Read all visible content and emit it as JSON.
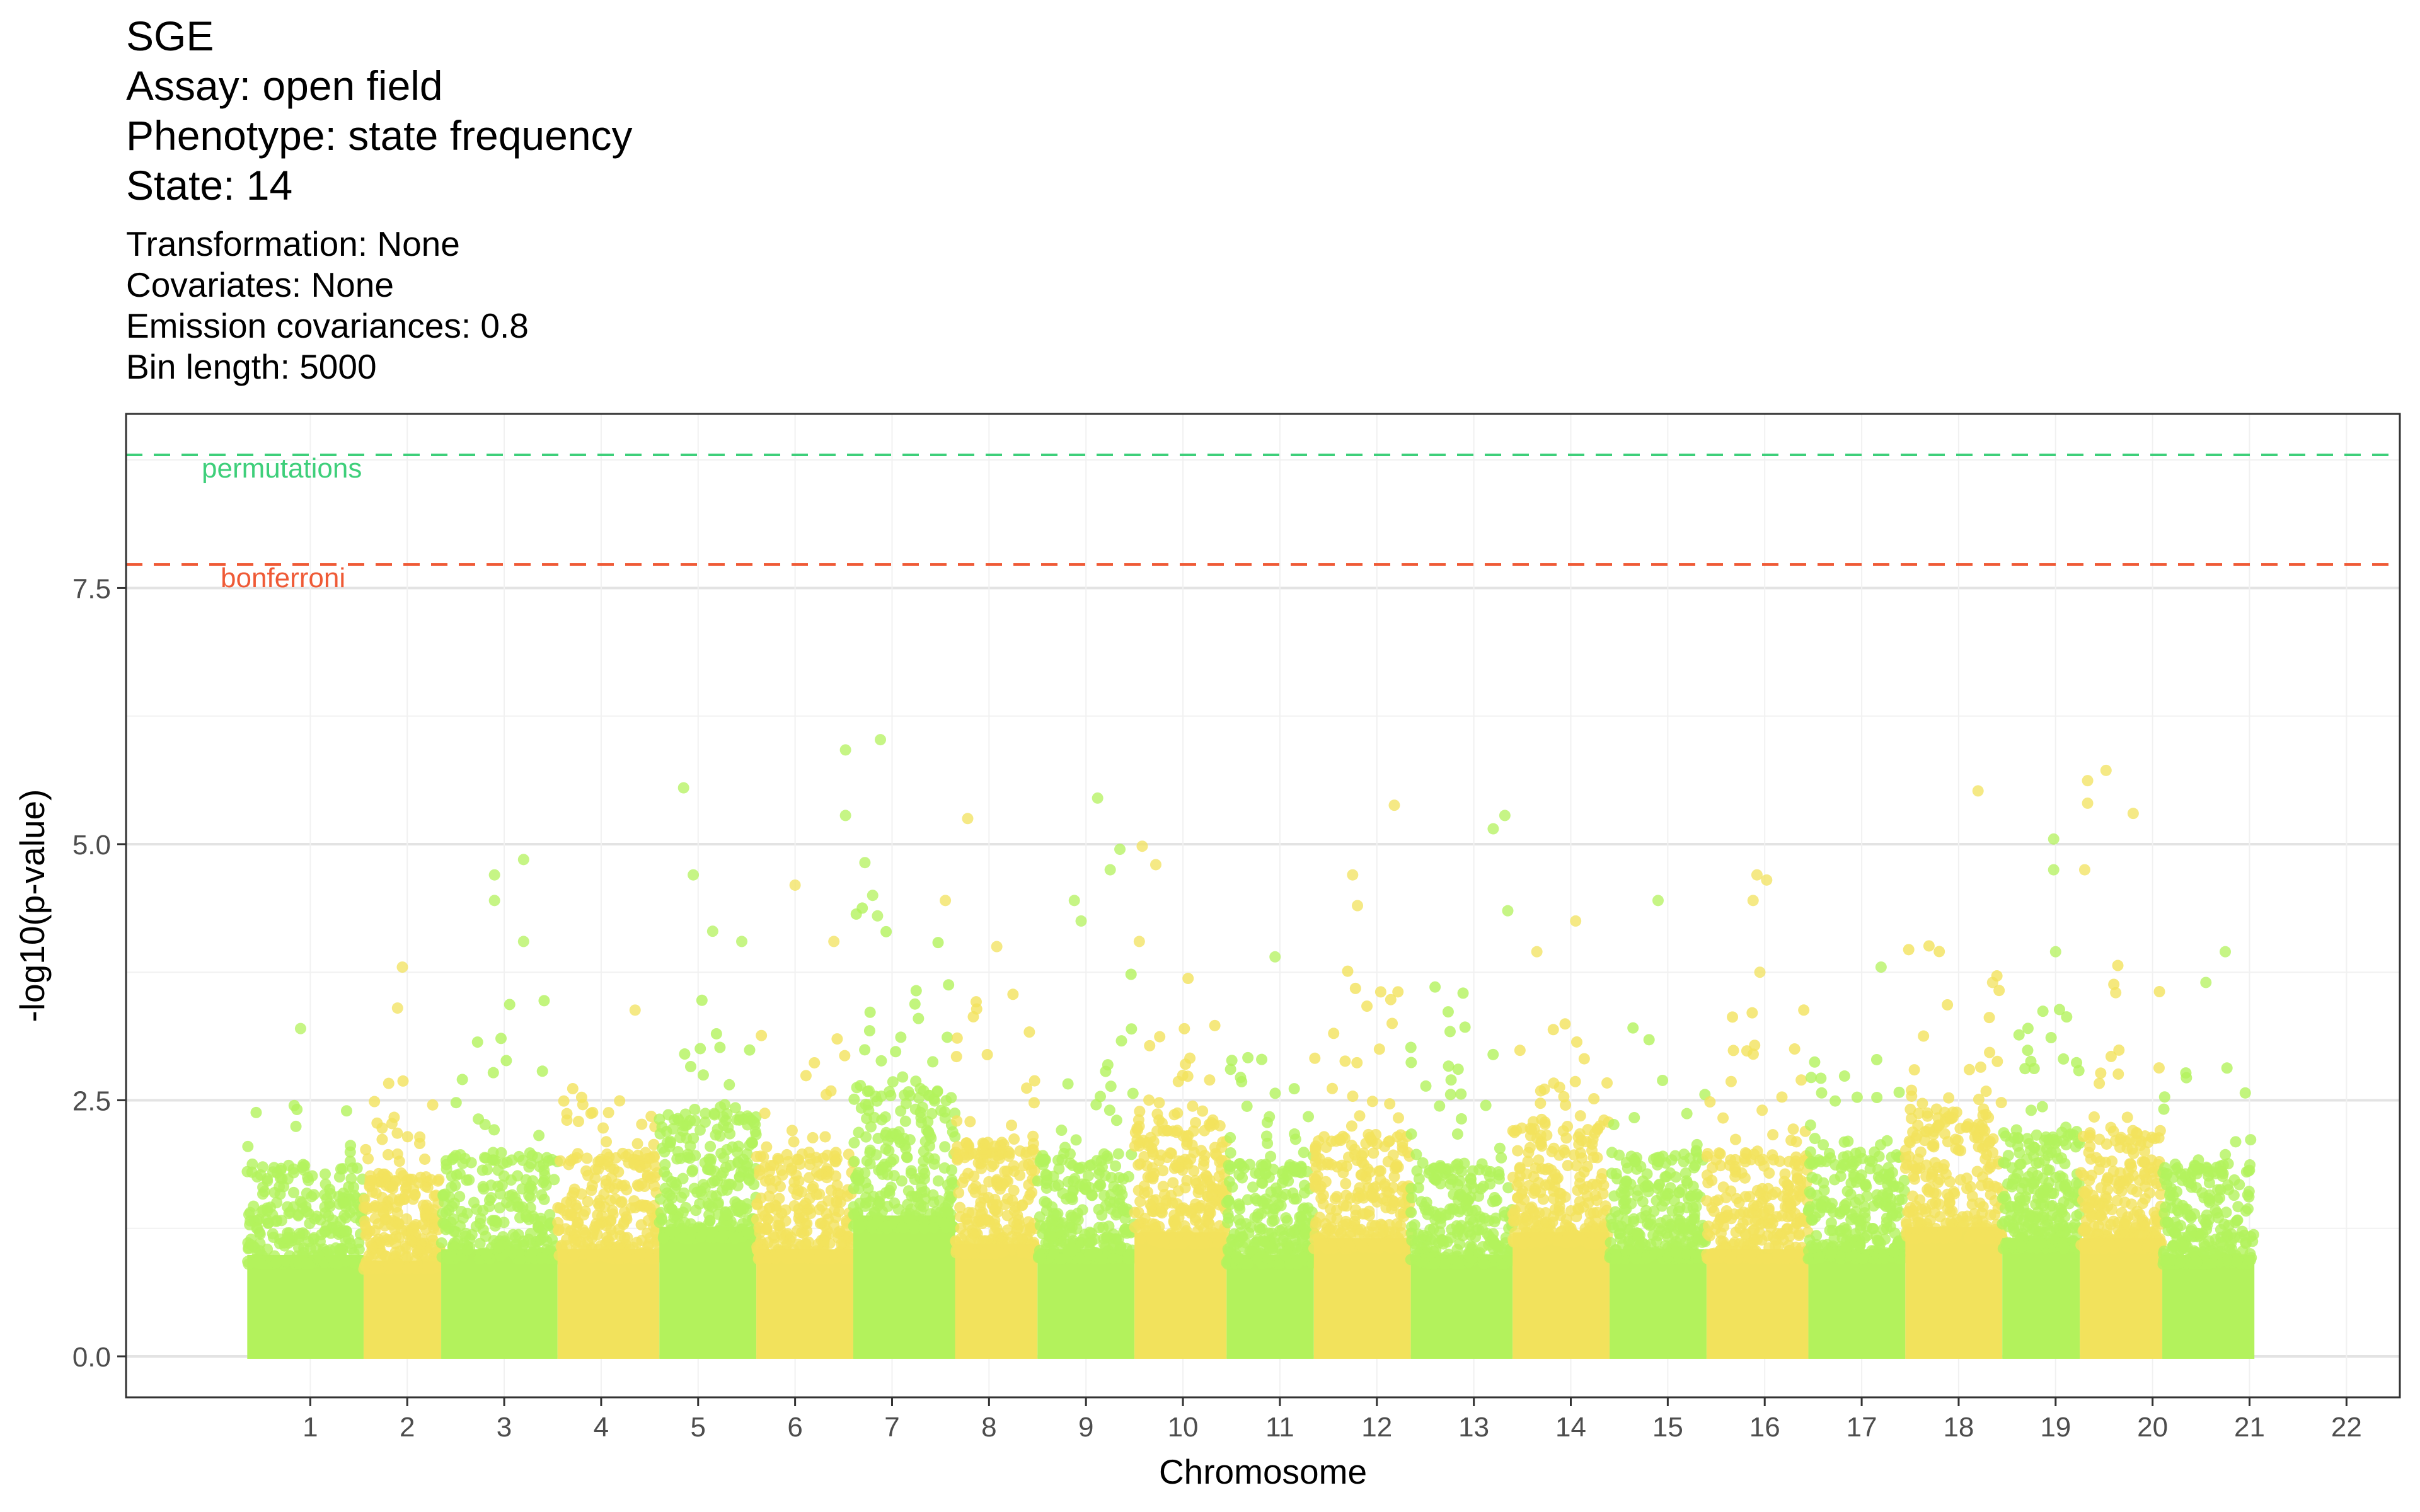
{
  "title": {
    "lines": [
      "SGE",
      "Assay: open field",
      "Phenotype: state frequency",
      "State: 14"
    ]
  },
  "subtitle": {
    "lines": [
      "Transformation: None",
      "Covariates: None",
      "Emission covariances: 0.8",
      "Bin length: 5000"
    ]
  },
  "chart_data": {
    "type": "scatter",
    "xlabel": "Chromosome",
    "ylabel": "-log10(p-value)",
    "ylim": [
      -0.4,
      9.2
    ],
    "yticks": [
      0.0,
      2.5,
      5.0,
      7.5
    ],
    "ytick_labels": [
      "0.0",
      "2.5",
      "5.0",
      "7.5"
    ],
    "grid": true,
    "colors": {
      "odd": "#b3f25c",
      "even": "#f2e25c"
    },
    "chromosomes": [
      {
        "label": "1",
        "start": 0.35,
        "end": 1.55,
        "base": 1.8,
        "peak": 3.2,
        "hits": [
          [
            0.9,
            3.2
          ]
        ]
      },
      {
        "label": "2",
        "start": 1.55,
        "end": 2.35,
        "base": 1.7,
        "peak": 3.8,
        "hits": [
          [
            1.95,
            3.8
          ],
          [
            1.9,
            3.4
          ]
        ]
      },
      {
        "label": "3",
        "start": 2.35,
        "end": 3.55,
        "base": 1.9,
        "peak": 4.85,
        "hits": [
          [
            2.9,
            4.7
          ],
          [
            2.9,
            4.45
          ],
          [
            3.2,
            4.85
          ],
          [
            3.2,
            4.05
          ]
        ]
      },
      {
        "label": "4",
        "start": 3.55,
        "end": 4.6,
        "base": 1.9,
        "peak": 3.4,
        "hits": [
          [
            4.35,
            3.38
          ]
        ]
      },
      {
        "label": "5",
        "start": 4.6,
        "end": 5.6,
        "base": 2.3,
        "peak": 5.55,
        "hits": [
          [
            4.85,
            5.55
          ],
          [
            4.95,
            4.7
          ],
          [
            5.15,
            4.15
          ],
          [
            5.45,
            4.05
          ]
        ]
      },
      {
        "label": "6",
        "start": 5.6,
        "end": 6.6,
        "base": 1.9,
        "peak": 4.6,
        "hits": [
          [
            6.0,
            4.6
          ],
          [
            6.4,
            4.05
          ]
        ]
      },
      {
        "label": "7",
        "start": 6.6,
        "end": 7.65,
        "base": 2.5,
        "peak": 6.02,
        "hits": [
          [
            6.52,
            5.92
          ],
          [
            6.52,
            5.28
          ],
          [
            6.88,
            6.02
          ],
          [
            6.72,
            4.82
          ],
          [
            6.8,
            4.5
          ],
          [
            6.85,
            4.3
          ]
        ]
      },
      {
        "label": "8",
        "start": 7.65,
        "end": 8.5,
        "base": 2.0,
        "peak": 5.25,
        "hits": [
          [
            7.78,
            5.25
          ],
          [
            8.08,
            4.0
          ],
          [
            7.55,
            4.45
          ]
        ]
      },
      {
        "label": "9",
        "start": 8.5,
        "end": 9.5,
        "base": 1.9,
        "peak": 5.45,
        "hits": [
          [
            9.12,
            5.45
          ],
          [
            8.88,
            4.45
          ],
          [
            8.95,
            4.25
          ],
          [
            9.25,
            4.75
          ],
          [
            9.35,
            4.95
          ]
        ]
      },
      {
        "label": "10",
        "start": 9.5,
        "end": 10.45,
        "base": 2.2,
        "peak": 4.98,
        "hits": [
          [
            9.58,
            4.98
          ],
          [
            9.72,
            4.8
          ],
          [
            9.55,
            4.05
          ]
        ]
      },
      {
        "label": "11",
        "start": 10.45,
        "end": 11.35,
        "base": 1.8,
        "peak": 3.9,
        "hits": [
          [
            10.95,
            3.9
          ]
        ]
      },
      {
        "label": "12",
        "start": 11.35,
        "end": 12.35,
        "base": 2.1,
        "peak": 5.38,
        "hits": [
          [
            12.18,
            5.38
          ],
          [
            11.75,
            4.7
          ],
          [
            11.8,
            4.4
          ]
        ]
      },
      {
        "label": "13",
        "start": 12.35,
        "end": 13.4,
        "base": 1.8,
        "peak": 5.28,
        "hits": [
          [
            13.32,
            5.28
          ],
          [
            13.2,
            5.15
          ],
          [
            13.35,
            4.35
          ]
        ]
      },
      {
        "label": "14",
        "start": 13.4,
        "end": 14.4,
        "base": 2.2,
        "peak": 4.25,
        "hits": [
          [
            14.05,
            4.25
          ],
          [
            13.65,
            3.95
          ]
        ]
      },
      {
        "label": "15",
        "start": 14.4,
        "end": 15.4,
        "base": 1.9,
        "peak": 4.45,
        "hits": [
          [
            14.9,
            4.45
          ]
        ]
      },
      {
        "label": "16",
        "start": 15.4,
        "end": 16.45,
        "base": 1.9,
        "peak": 4.7,
        "hits": [
          [
            15.92,
            4.7
          ],
          [
            16.02,
            4.65
          ],
          [
            15.88,
            4.45
          ],
          [
            15.95,
            3.75
          ]
        ]
      },
      {
        "label": "17",
        "start": 16.45,
        "end": 17.45,
        "base": 1.9,
        "peak": 3.8,
        "hits": [
          [
            17.2,
            3.8
          ]
        ]
      },
      {
        "label": "18",
        "start": 17.45,
        "end": 18.45,
        "base": 2.3,
        "peak": 5.52,
        "hits": [
          [
            18.2,
            5.52
          ],
          [
            18.35,
            3.65
          ]
        ]
      },
      {
        "label": "19",
        "start": 18.45,
        "end": 19.25,
        "base": 2.1,
        "peak": 5.05,
        "hits": [
          [
            18.98,
            5.05
          ],
          [
            18.98,
            4.75
          ],
          [
            19.0,
            3.95
          ]
        ]
      },
      {
        "label": "20",
        "start": 19.25,
        "end": 20.1,
        "base": 2.1,
        "peak": 5.72,
        "hits": [
          [
            19.33,
            5.62
          ],
          [
            19.33,
            5.4
          ],
          [
            19.3,
            4.75
          ],
          [
            19.52,
            5.72
          ],
          [
            19.8,
            5.3
          ],
          [
            19.62,
            3.55
          ]
        ]
      },
      {
        "label": "21",
        "start": 20.1,
        "end": 21.05,
        "base": 1.8,
        "peak": 3.95,
        "hits": [
          [
            20.75,
            3.95
          ],
          [
            20.55,
            3.65
          ]
        ]
      },
      {
        "label": "22",
        "start": 21.05,
        "end": 22.0,
        "base": 0,
        "peak": 0,
        "hits": []
      }
    ],
    "thresholds": [
      {
        "name": "permutations",
        "value": 8.8,
        "color": "#3ecf7a"
      },
      {
        "name": "bonferroni",
        "value": 7.73,
        "color": "#ef5a36"
      }
    ]
  }
}
